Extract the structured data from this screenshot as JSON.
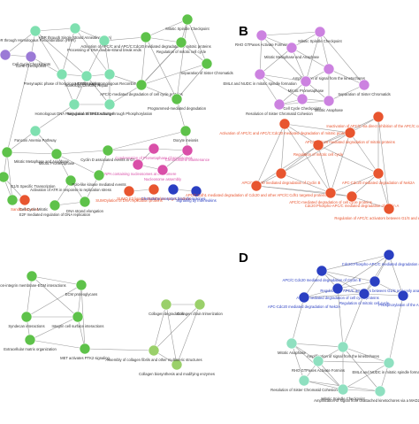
{
  "panels": [
    {
      "id": "A",
      "label": "",
      "nodes": [
        {
          "id": "a1",
          "text": "Cell Cycle Checkpoints",
          "color": "#9b7ad6"
        },
        {
          "id": "a2",
          "text": "G2/M Checkpoints",
          "color": "#9b7ad6"
        },
        {
          "id": "a3",
          "text": "HDR through Homologous Recombination (HRR)",
          "color": "#7fe0b0"
        },
        {
          "id": "a4",
          "text": "HDR through Single Strand Annealing (SSA)",
          "color": "#7fe0b0"
        },
        {
          "id": "a5",
          "text": "Processing of DNA double-strand break ends",
          "color": "#7fe0b0"
        },
        {
          "id": "a6",
          "text": "Presynaptic phase of homologous DNA pairing",
          "color": "#7fe0b0"
        },
        {
          "id": "a7",
          "text": "Homology Directed Repair",
          "color": "#7fe0b0"
        },
        {
          "id": "a8",
          "text": "HDR through Homologous Recombination",
          "color": "#7fe0b0"
        },
        {
          "id": "a9",
          "text": "Homologous DNA Pairing and Strand Exchange",
          "color": "#7fe0b0"
        },
        {
          "id": "a10",
          "text": "Regulation of TP53 Activity through Phosphorylation",
          "color": "#7fe0b0"
        },
        {
          "id": "a11",
          "text": "Activation of APC/C and APC/C:Cdc20 mediated degradation of mitotic proteins",
          "color": "#5ec24a"
        },
        {
          "id": "a12",
          "text": "Regulation of mitotic cell cycle",
          "color": "#5ec24a"
        },
        {
          "id": "a13",
          "text": "APC/C-mediated degradation of cell cycle proteins",
          "color": "#5ec24a"
        },
        {
          "id": "a14",
          "text": "Mitotic Spindle Checkpoint",
          "color": "#5ec24a"
        },
        {
          "id": "a15",
          "text": "Separation of Sister Chromatids",
          "color": "#5ec24a"
        },
        {
          "id": "a16",
          "text": "Programmed-mediated degradation",
          "color": "#5ec24a"
        },
        {
          "id": "a17",
          "text": "Oocyte meiosis",
          "color": "#5ec24a"
        },
        {
          "id": "a18",
          "text": "Condensation of Prometaphase Chromosomes",
          "color": "#d94fa8"
        },
        {
          "id": "a19",
          "text": "Chromosome Maintenance",
          "color": "#d94fa8"
        },
        {
          "id": "a20",
          "text": "Mitotic Prometaphase",
          "color": "#5ec24a"
        },
        {
          "id": "a21",
          "text": "Cyclin D associated events in G1",
          "color": "#5ec24a"
        },
        {
          "id": "a22",
          "text": "CENPA containing nucleosomes at centromere",
          "color": "#d94fa8"
        },
        {
          "id": "a23",
          "text": "Nucleosome assembly",
          "color": "#d94fa8"
        },
        {
          "id": "a24",
          "text": "Sandhu fan et al.",
          "color": "#e8552f"
        },
        {
          "id": "a25",
          "text": "SUMOylation of DNA replication proteins",
          "color": "#e8552f"
        },
        {
          "id": "a26",
          "text": "SUMO E3 ligases SUMOylate target proteins",
          "color": "#e8552f"
        },
        {
          "id": "a27",
          "text": "Chemokine receptors bind chemokines",
          "color": "#2a3fc2"
        },
        {
          "id": "a28",
          "text": "Signaling by Interleukins",
          "color": "#2a3fc2"
        },
        {
          "id": "a29",
          "text": "G1/S Specific Transcription",
          "color": "#5ec24a"
        },
        {
          "id": "a30",
          "text": "Cell Cycle Mitotic",
          "color": "#5ec24a"
        },
        {
          "id": "a31",
          "text": "Mitotic Metaphase and Anaphase",
          "color": "#5ec24a"
        },
        {
          "id": "a32",
          "text": "Fanconi Anemia Pathway",
          "color": "#7fe0b0"
        },
        {
          "id": "a33",
          "text": "Activation of ATR in response to replication stress",
          "color": "#5ec24a"
        },
        {
          "id": "a34",
          "text": "DNA strand elongation",
          "color": "#5ec24a"
        },
        {
          "id": "a35",
          "text": "E2F mediated regulation of DNA replication",
          "color": "#5ec24a"
        },
        {
          "id": "a36",
          "text": "Polo-like kinase mediated events",
          "color": "#5ec24a"
        }
      ]
    },
    {
      "id": "B",
      "label": "B",
      "nodes": [
        {
          "id": "b1",
          "text": "RHO GTPases Activate Formins",
          "color": "#cc82e0"
        },
        {
          "id": "b2",
          "text": "Mitotic Spindle Checkpoint",
          "color": "#cc82e0"
        },
        {
          "id": "b3",
          "text": "Mitotic Metaphase and Anaphase",
          "color": "#cc82e0"
        },
        {
          "id": "b4",
          "text": "EML4 and NUDC in mitotic spindle formation",
          "color": "#cc82e0"
        },
        {
          "id": "b5",
          "text": "Amplification of signal from the kinetochores",
          "color": "#cc82e0"
        },
        {
          "id": "b6",
          "text": "Mitotic Prometaphase",
          "color": "#cc82e0"
        },
        {
          "id": "b7",
          "text": "Resolution of Sister Chromatid Cohesion",
          "color": "#cc82e0"
        },
        {
          "id": "b8",
          "text": "Cell Cycle Checkpoints",
          "color": "#cc82e0"
        },
        {
          "id": "b9",
          "text": "Mitotic Anaphase",
          "color": "#cc82e0"
        },
        {
          "id": "b10",
          "text": "Separation of Sister Chromatids",
          "color": "#cc82e0"
        },
        {
          "id": "b11",
          "text": "Activation of APC/C and APC/C:Cdc20 mediated degradation of mitotic proteins",
          "color": "#e8552f"
        },
        {
          "id": "b12",
          "text": "Regulation of mitotic cell cycle",
          "color": "#e8552f"
        },
        {
          "id": "b13",
          "text": "APC/C:Cdc20 mediated degradation of mitotic proteins",
          "color": "#e8552f"
        },
        {
          "id": "b14",
          "text": "Inactivation of APC/C via direct inhibition of the APC/C complex",
          "color": "#e8552f"
        },
        {
          "id": "b15",
          "text": "APC/C:Cdc20 mediated degradation of Cyclin B",
          "color": "#e8552f"
        },
        {
          "id": "b16",
          "text": "APC/C:Cdh1 mediated degradation of Cdc20 and other APC/C:Cdh1 targeted proteins",
          "color": "#e8552f"
        },
        {
          "id": "b17",
          "text": "APC-Cdc20 mediated degradation of Nek2A",
          "color": "#e8552f"
        },
        {
          "id": "b18",
          "text": "APC/C-mediated degradation of cell cycle proteins",
          "color": "#e8552f"
        },
        {
          "id": "b19",
          "text": "Cdc20:Phospho-APC/C mediated degradation of Cyclin A",
          "color": "#e8552f"
        },
        {
          "id": "b20",
          "text": "Regulation of APC/C activators between G1/S and early anaphase",
          "color": "#e8552f"
        }
      ]
    },
    {
      "id": "C",
      "label": "",
      "nodes": [
        {
          "id": "c1",
          "text": "Non-integrin membrane-ECM interactions",
          "color": "#5ec24a"
        },
        {
          "id": "c2",
          "text": "ECM proteoglycans",
          "color": "#5ec24a"
        },
        {
          "id": "c3",
          "text": "Syndecan interactions",
          "color": "#5ec24a"
        },
        {
          "id": "c4",
          "text": "Integrin cell surface interactions",
          "color": "#5ec24a"
        },
        {
          "id": "c5",
          "text": "MET activates PTK2 signaling",
          "color": "#5ec24a"
        },
        {
          "id": "c6",
          "text": "Extracellular matrix organization",
          "color": "#5ec24a"
        },
        {
          "id": "c7",
          "text": "Collagen degradation",
          "color": "#9ad06a"
        },
        {
          "id": "c8",
          "text": "Collagen chain trimerization",
          "color": "#9ad06a"
        },
        {
          "id": "c9",
          "text": "Collagen biosynthesis and modifying enzymes",
          "color": "#9ad06a"
        },
        {
          "id": "c10",
          "text": "Assembly of collagen fibrils and other multimeric structures",
          "color": "#9ad06a"
        }
      ]
    },
    {
      "id": "D",
      "label": "D",
      "nodes": [
        {
          "id": "d1",
          "text": "Cdc20:Phospho-APC/C mediated degradation of Cyclin A",
          "color": "#2a3fc2"
        },
        {
          "id": "d2",
          "text": "APC/C:Cdc20 mediated degradation of Cyclin B",
          "color": "#2a3fc2"
        },
        {
          "id": "d3",
          "text": "Regulation of APC/C activators between G1/S and early anaphase",
          "color": "#2a3fc2"
        },
        {
          "id": "d4",
          "text": "APC/C-mediated degradation of cell cycle proteins",
          "color": "#2a3fc2"
        },
        {
          "id": "d5",
          "text": "Regulation of mitotic cell cycle",
          "color": "#2a3fc2"
        },
        {
          "id": "d6",
          "text": "APC-Cdc20 mediated degradation of Nek2A",
          "color": "#2a3fc2"
        },
        {
          "id": "d7",
          "text": "Phosphorylation of the APC/C",
          "color": "#2a3fc2"
        },
        {
          "id": "d8",
          "text": "Mitotic Anaphase",
          "color": "#8fe0c0"
        },
        {
          "id": "d9",
          "text": "Amplification of signal from the kinetochores",
          "color": "#8fe0c0"
        },
        {
          "id": "d10",
          "text": "RHO GTPases Activate Formins",
          "color": "#8fe0c0"
        },
        {
          "id": "d11",
          "text": "EML4 and NUDC in mitotic spindle formation",
          "color": "#8fe0c0"
        },
        {
          "id": "d12",
          "text": "Mitotic Spindle Checkpoint",
          "color": "#8fe0c0"
        },
        {
          "id": "d13",
          "text": "Resolution of Sister Chromatid Cohesion",
          "color": "#8fe0c0"
        },
        {
          "id": "d14",
          "text": "Amplification of signal from unattached kinetochores via a MAD2 inhibitory signal",
          "color": "#8fe0c0"
        }
      ]
    }
  ]
}
